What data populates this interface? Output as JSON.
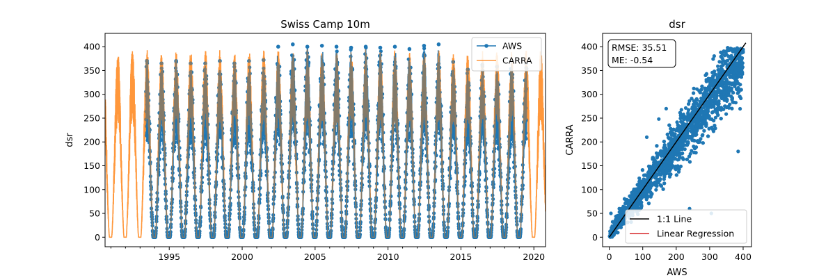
{
  "chart_data": [
    {
      "type": "line",
      "title": "Swiss Camp 10m",
      "xlabel": "",
      "ylabel": "dsr",
      "xlim": [
        1990.6,
        2020.8
      ],
      "ylim": [
        -20,
        428
      ],
      "x_ticks": [
        1995,
        2000,
        2005,
        2010,
        2015,
        2020
      ],
      "y_ticks": [
        0,
        50,
        100,
        150,
        200,
        250,
        300,
        350,
        400
      ],
      "legend_position": "top-right",
      "series": [
        {
          "name": "AWS",
          "color": "#1f77b4",
          "marker": "circle",
          "x_range": [
            1993.4,
            2019.5
          ],
          "annual_peaks": [
            {
              "year": 1993,
              "peak": 370
            },
            {
              "year": 1994,
              "peak": 365
            },
            {
              "year": 1995,
              "peak": 370
            },
            {
              "year": 1996,
              "peak": 365
            },
            {
              "year": 1997,
              "peak": 365
            },
            {
              "year": 1998,
              "peak": 370
            },
            {
              "year": 1999,
              "peak": 365
            },
            {
              "year": 2000,
              "peak": 370
            },
            {
              "year": 2001,
              "peak": 372
            },
            {
              "year": 2002,
              "peak": 400
            },
            {
              "year": 2003,
              "peak": 405
            },
            {
              "year": 2004,
              "peak": 400
            },
            {
              "year": 2005,
              "peak": 402
            },
            {
              "year": 2006,
              "peak": 400
            },
            {
              "year": 2007,
              "peak": 398
            },
            {
              "year": 2008,
              "peak": 400
            },
            {
              "year": 2009,
              "peak": 398
            },
            {
              "year": 2010,
              "peak": 400
            },
            {
              "year": 2011,
              "peak": 395
            },
            {
              "year": 2012,
              "peak": 402
            },
            {
              "year": 2013,
              "peak": 405
            },
            {
              "year": 2014,
              "peak": 368
            },
            {
              "year": 2015,
              "peak": 352
            },
            {
              "year": 2016,
              "peak": 362
            },
            {
              "year": 2017,
              "peak": 358
            },
            {
              "year": 2018,
              "peak": 370
            },
            {
              "year": 2019,
              "peak": 365
            }
          ],
          "winter_min": 0
        },
        {
          "name": "CARRA",
          "color": "#ff7f0e",
          "opacity": 0.65,
          "x_range": [
            1990.6,
            2020.8
          ],
          "annual_peaks": [
            {
              "year": 1991,
              "peak": 392
            },
            {
              "year": 1992,
              "peak": 402
            },
            {
              "year": 1993,
              "peak": 398
            },
            {
              "year": 1994,
              "peak": 390
            },
            {
              "year": 1995,
              "peak": 395
            },
            {
              "year": 1996,
              "peak": 398
            },
            {
              "year": 1997,
              "peak": 400
            },
            {
              "year": 1998,
              "peak": 395
            },
            {
              "year": 1999,
              "peak": 392
            },
            {
              "year": 2000,
              "peak": 394
            },
            {
              "year": 2001,
              "peak": 396
            },
            {
              "year": 2002,
              "peak": 395
            },
            {
              "year": 2003,
              "peak": 393
            },
            {
              "year": 2004,
              "peak": 398
            },
            {
              "year": 2005,
              "peak": 396
            },
            {
              "year": 2006,
              "peak": 392
            },
            {
              "year": 2007,
              "peak": 394
            },
            {
              "year": 2008,
              "peak": 396
            },
            {
              "year": 2009,
              "peak": 392
            },
            {
              "year": 2010,
              "peak": 394
            },
            {
              "year": 2011,
              "peak": 392
            },
            {
              "year": 2012,
              "peak": 398
            },
            {
              "year": 2013,
              "peak": 395
            },
            {
              "year": 2014,
              "peak": 390
            },
            {
              "year": 2015,
              "peak": 392
            },
            {
              "year": 2016,
              "peak": 394
            },
            {
              "year": 2017,
              "peak": 396
            },
            {
              "year": 2018,
              "peak": 392
            },
            {
              "year": 2019,
              "peak": 395
            },
            {
              "year": 2020,
              "peak": 395
            }
          ],
          "winter_min": 0
        }
      ]
    },
    {
      "type": "scatter",
      "title": "dsr",
      "xlabel": "AWS",
      "ylabel": "CARRA",
      "xlim": [
        -20,
        425
      ],
      "ylim": [
        -20,
        428
      ],
      "x_ticks": [
        0,
        100,
        200,
        300,
        400
      ],
      "y_ticks": [
        0,
        50,
        100,
        150,
        200,
        250,
        300,
        350,
        400
      ],
      "point_color": "#1f77b4",
      "stats_box": [
        "RMSE: 35.51",
        "ME: -0.54"
      ],
      "reference_line": {
        "label": "1:1 Line",
        "color": "#000000",
        "from": [
          0,
          0
        ],
        "to": [
          408,
          408
        ]
      },
      "regression_line": {
        "label": "Linear Regression",
        "color": "#d62728"
      },
      "legend_position": "lower-right",
      "outliers": [
        [
          385,
          180
        ],
        [
          170,
          270
        ],
        [
          112,
          210
        ],
        [
          148,
          248
        ],
        [
          240,
          60
        ],
        [
          30,
          60
        ],
        [
          305,
          50
        ],
        [
          5,
          50
        ]
      ]
    }
  ]
}
